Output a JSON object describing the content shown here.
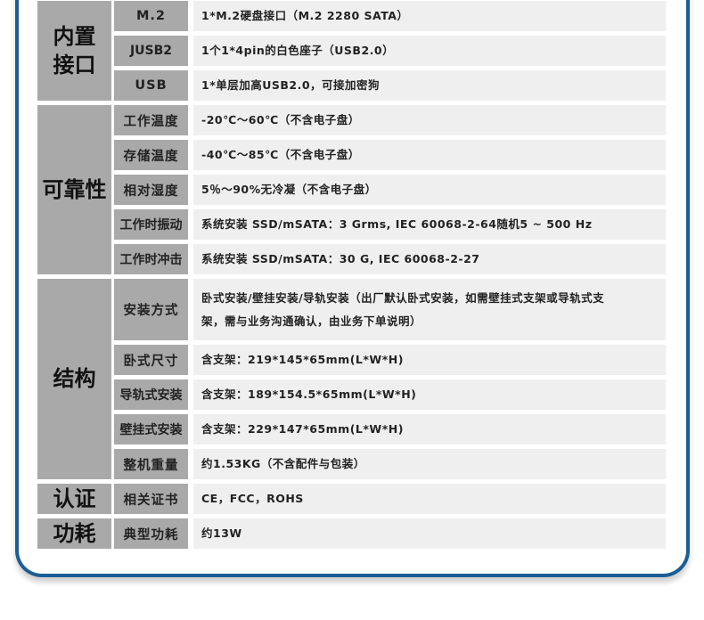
{
  "colors": {
    "frame": "#1b5e95",
    "label_bg": "#a9a9a9",
    "value_bg": "#efefef"
  },
  "groups": [
    {
      "category": "内置接口",
      "rows": [
        {
          "label": "M.2",
          "value": "1*M.2硬盘接口（M.2 2280  SATA）"
        },
        {
          "label": "JUSB2",
          "value": "1个1*4pin的白色座子（USB2.0）"
        },
        {
          "label": "USB",
          "value": "1*单层加高USB2.0，可接加密狗"
        }
      ]
    },
    {
      "category": "可靠性",
      "rows": [
        {
          "label": "工作温度",
          "value": "-20℃～60℃（不含电子盘）"
        },
        {
          "label": "存储温度",
          "value": "-40℃～85℃（不含电子盘）"
        },
        {
          "label": "相对湿度",
          "value": "5％～90%无冷凝（不含电子盘）"
        },
        {
          "label": "工作时振动",
          "value": "系统安装 SSD/mSATA：3 Grms, IEC 60068-2-64随机5 ~ 500 Hz"
        },
        {
          "label": "工作时冲击",
          "value": "系统安装 SSD/mSATA：30 G, IEC 60068-2-27"
        }
      ]
    },
    {
      "category": "结构",
      "rows": [
        {
          "label": "安装方式",
          "value": "卧式安装/壁挂安装/导轨安装（出厂默认卧式安装，如需壁挂式支架或导轨式支架，需与业务沟通确认，由业务下单说明）"
        },
        {
          "label": "卧式尺寸",
          "value": "含支架：219*145*65mm(L*W*H)"
        },
        {
          "label": "导轨式安装",
          "value": "含支架：189*154.5*65mm(L*W*H)"
        },
        {
          "label": "壁挂式安装",
          "value": "含支架：229*147*65mm(L*W*H)"
        },
        {
          "label": "整机重量",
          "value": "约1.53KG（不含配件与包装）"
        }
      ]
    },
    {
      "category": "认证",
      "rows": [
        {
          "label": "相关证书",
          "value": "CE，FCC，ROHS"
        }
      ]
    },
    {
      "category": "功耗",
      "rows": [
        {
          "label": "典型功耗",
          "value": "约13W"
        }
      ]
    }
  ]
}
